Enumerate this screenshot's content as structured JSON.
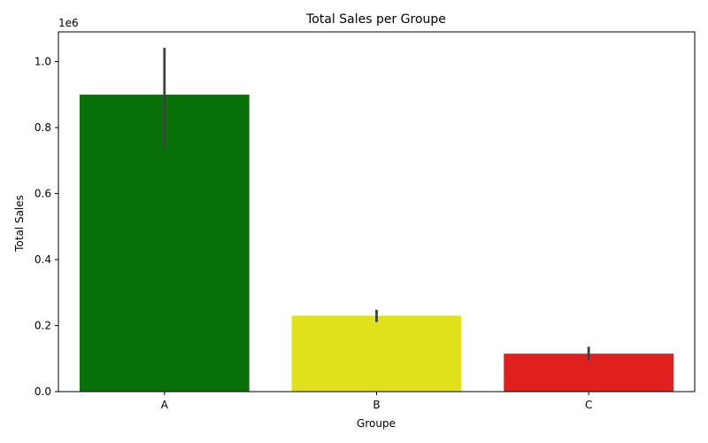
{
  "chart_data": {
    "type": "bar",
    "title": "Total Sales per Groupe",
    "xlabel": "Groupe",
    "ylabel": "Total Sales",
    "y_offset_text": "1e6",
    "categories": [
      "A",
      "B",
      "C"
    ],
    "values": [
      900000,
      230000,
      115000
    ],
    "error_bars": [
      {
        "low": 735000,
        "high": 1042000
      },
      {
        "low": 211000,
        "high": 248000
      },
      {
        "low": 95000,
        "high": 136000
      }
    ],
    "colors": [
      "#087008",
      "#e0e01b",
      "#e01f1f"
    ],
    "error_color": "#404040",
    "ylim": [
      0,
      1090000
    ],
    "yticks": [
      0,
      200000,
      400000,
      600000,
      800000,
      1000000
    ],
    "ytick_labels": [
      "0.0",
      "0.2",
      "0.4",
      "0.6",
      "0.8",
      "1.0"
    ],
    "grid": false,
    "legend": "none"
  }
}
